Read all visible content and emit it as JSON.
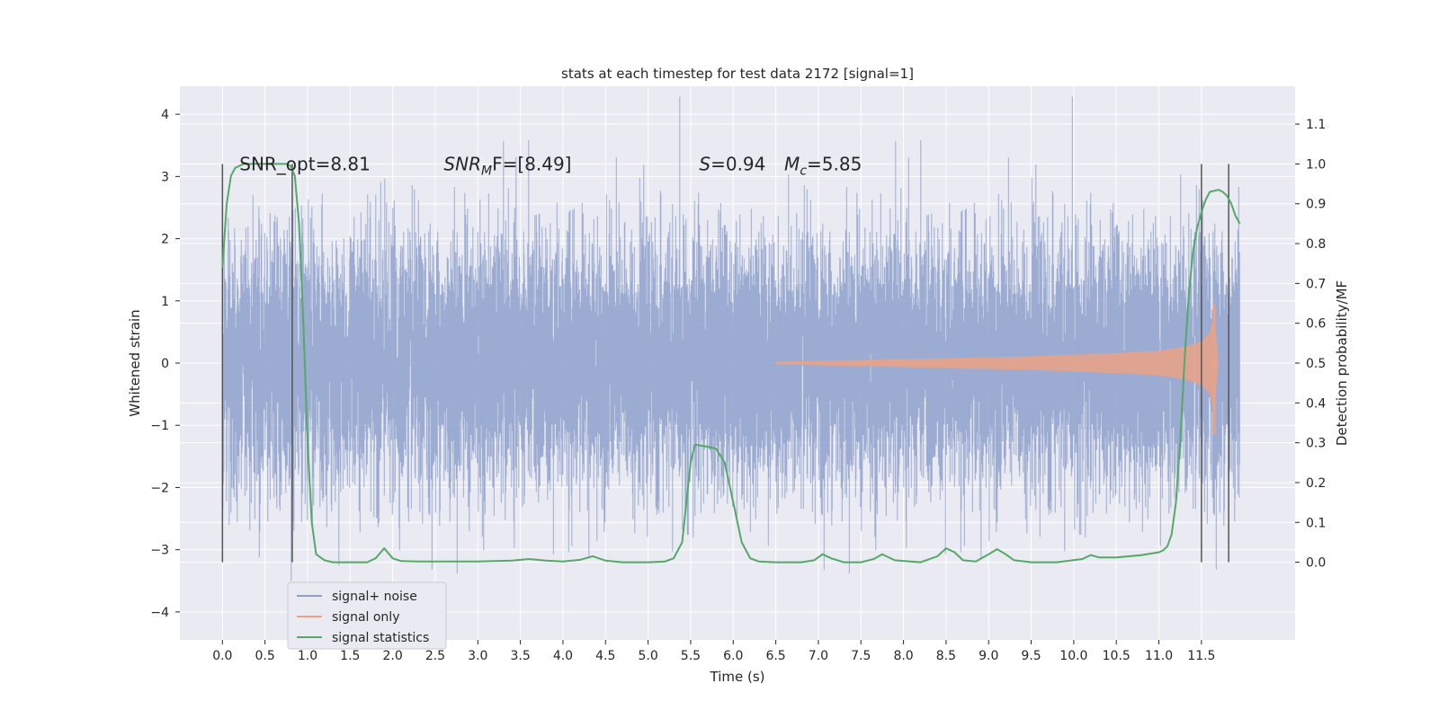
{
  "chart_data": {
    "type": "line",
    "title": "stats at each timestep for test data 2172 [signal=1]",
    "xlabel": "Time (s)",
    "ylabel": "Whitened strain",
    "y2label": "Detection probability/MF",
    "xlim": [
      -0.5,
      12.6
    ],
    "ylim": [
      -4.45,
      4.45
    ],
    "y2lim": [
      -0.195,
      1.195
    ],
    "grid": true,
    "x_ticks": [
      "0.0",
      "0.5",
      "1.0",
      "1.5",
      "2.0",
      "2.5",
      "3.0",
      "3.5",
      "4.0",
      "4.5",
      "5.0",
      "5.5",
      "6.0",
      "6.5",
      "7.0",
      "7.5",
      "8.0",
      "8.5",
      "9.0",
      "9.5",
      "10.0",
      "10.5",
      "11.0",
      "11.5"
    ],
    "y_ticks": [
      "−4",
      "−3",
      "−2",
      "−1",
      "0",
      "1",
      "2",
      "3",
      "4"
    ],
    "y2_ticks": [
      "0.0",
      "0.1",
      "0.2",
      "0.3",
      "0.4",
      "0.5",
      "0.6",
      "0.7",
      "0.8",
      "0.9",
      "1.0",
      "1.1"
    ],
    "annotations": [
      {
        "text": "SNR_opt=8.81",
        "x": 0.2,
        "y": 3.2
      },
      {
        "text": "SNR",
        "sub": "M",
        "suffix": "F=[8.49]",
        "x": 2.6,
        "y": 3.2
      },
      {
        "text": "S",
        "suffix": "=0.94",
        "x": 5.6,
        "y": 3.2
      },
      {
        "text": "M",
        "sub": "c",
        "suffix": "=5.85",
        "x": 6.6,
        "y": 3.2
      }
    ],
    "vlines": [
      {
        "x": 0.0,
        "y": [
          -3.2,
          3.2
        ]
      },
      {
        "x": 0.82,
        "y": [
          -3.2,
          3.2
        ]
      },
      {
        "x": 11.5,
        "y": [
          -3.2,
          3.2
        ]
      },
      {
        "x": 11.82,
        "y": [
          -3.2,
          3.2
        ]
      }
    ],
    "legend_position": "lower-left",
    "series": [
      {
        "name": "signal+ noise",
        "color": "#8da0cb",
        "style": "noise",
        "x_range": [
          0.0,
          11.95
        ],
        "amplitude_sigma": 1.0
      },
      {
        "name": "signal only",
        "color": "#e5a38a",
        "style": "chirp-envelope",
        "x": [
          6.5,
          7.5,
          8.5,
          9.5,
          10.5,
          11.0,
          11.3,
          11.5,
          11.6,
          11.65,
          11.7
        ],
        "envelope": [
          0.02,
          0.05,
          0.08,
          0.11,
          0.16,
          0.2,
          0.26,
          0.35,
          0.5,
          0.8,
          0.0
        ],
        "spike": [
          11.65,
          -1.15,
          0.95
        ]
      },
      {
        "name": "signal statistics",
        "color": "#55a868",
        "style": "line",
        "axis": "right",
        "x": [
          0.0,
          0.05,
          0.1,
          0.15,
          0.25,
          0.4,
          0.6,
          0.75,
          0.8,
          0.85,
          0.9,
          0.95,
          1.0,
          1.05,
          1.1,
          1.2,
          1.3,
          1.5,
          1.7,
          1.8,
          1.9,
          2.0,
          2.1,
          2.3,
          2.6,
          3.0,
          3.4,
          3.6,
          3.8,
          4.0,
          4.2,
          4.35,
          4.5,
          4.7,
          5.0,
          5.2,
          5.3,
          5.4,
          5.45,
          5.5,
          5.55,
          5.7,
          5.8,
          5.9,
          6.0,
          6.1,
          6.2,
          6.3,
          6.5,
          6.8,
          6.95,
          7.05,
          7.15,
          7.3,
          7.5,
          7.65,
          7.75,
          7.9,
          8.2,
          8.4,
          8.5,
          8.6,
          8.7,
          8.85,
          9.0,
          9.1,
          9.2,
          9.3,
          9.5,
          9.8,
          10.1,
          10.2,
          10.3,
          10.5,
          10.8,
          11.0,
          11.05,
          11.1,
          11.15,
          11.2,
          11.25,
          11.3,
          11.35,
          11.4,
          11.45,
          11.5,
          11.55,
          11.6,
          11.7,
          11.75,
          11.8,
          11.85,
          11.9,
          11.95
        ],
        "y": [
          0.74,
          0.9,
          0.97,
          0.99,
          1.0,
          1.0,
          1.0,
          1.0,
          0.995,
          0.97,
          0.85,
          0.6,
          0.3,
          0.1,
          0.02,
          0.005,
          0.0,
          0.0,
          0.0,
          0.01,
          0.035,
          0.01,
          0.003,
          0.002,
          0.002,
          0.002,
          0.004,
          0.008,
          0.004,
          0.002,
          0.006,
          0.015,
          0.004,
          0.0,
          0.0,
          0.002,
          0.01,
          0.05,
          0.15,
          0.25,
          0.295,
          0.29,
          0.285,
          0.25,
          0.15,
          0.05,
          0.01,
          0.002,
          0.0,
          0.0,
          0.005,
          0.02,
          0.01,
          0.0,
          0.0,
          0.008,
          0.02,
          0.005,
          0.0,
          0.015,
          0.035,
          0.025,
          0.005,
          0.002,
          0.02,
          0.033,
          0.02,
          0.005,
          0.0,
          0.0,
          0.008,
          0.018,
          0.012,
          0.012,
          0.018,
          0.025,
          0.03,
          0.04,
          0.07,
          0.15,
          0.3,
          0.5,
          0.67,
          0.78,
          0.84,
          0.88,
          0.91,
          0.93,
          0.935,
          0.93,
          0.92,
          0.9,
          0.87,
          0.85
        ]
      }
    ]
  }
}
